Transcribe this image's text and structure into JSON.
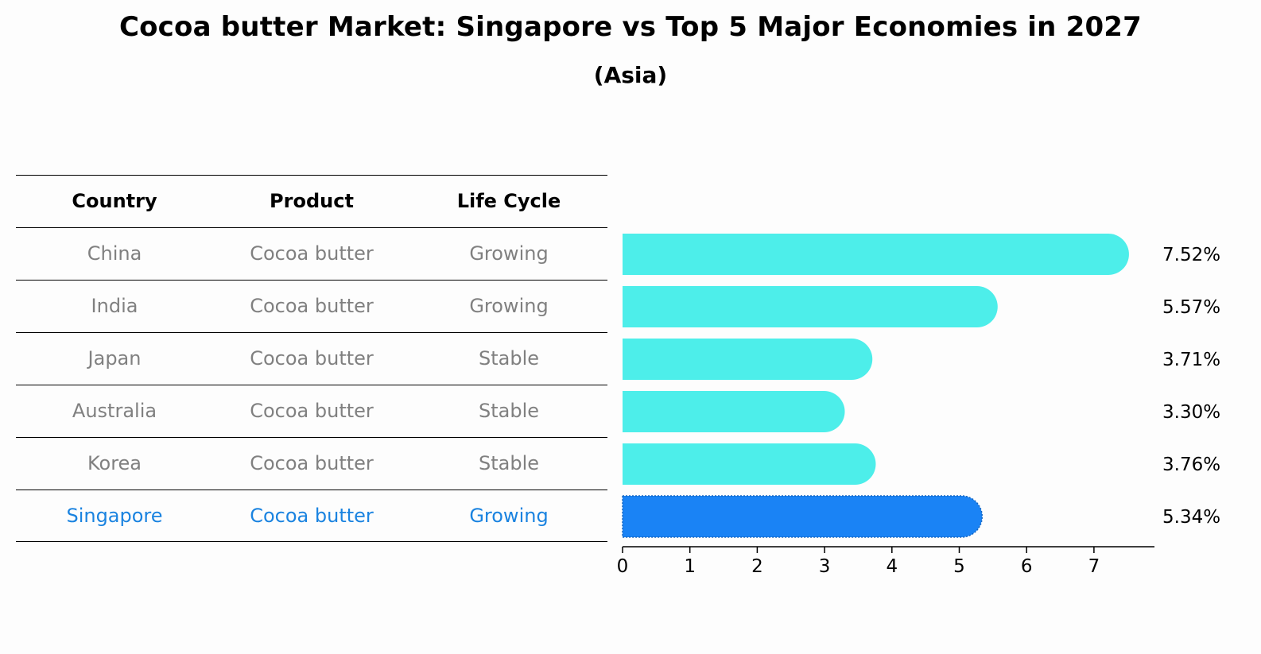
{
  "chart_data": {
    "type": "bar",
    "orientation": "horizontal",
    "title": "Cocoa butter Market: Singapore vs Top 5 Major Economies in 2027",
    "subtitle": "(Asia)",
    "table": {
      "headers": [
        "Country",
        "Product",
        "Life Cycle"
      ],
      "rows": [
        [
          "China",
          "Cocoa butter",
          "Growing"
        ],
        [
          "India",
          "Cocoa butter",
          "Growing"
        ],
        [
          "Japan",
          "Cocoa butter",
          "Stable"
        ],
        [
          "Australia",
          "Cocoa butter",
          "Stable"
        ],
        [
          "Korea",
          "Cocoa butter",
          "Stable"
        ],
        [
          "Singapore",
          "Cocoa butter",
          "Growing"
        ]
      ],
      "highlight_row": 5
    },
    "categories": [
      "China",
      "India",
      "Japan",
      "Australia",
      "Korea",
      "Singapore"
    ],
    "values": [
      7.52,
      5.57,
      3.71,
      3.3,
      3.76,
      5.34
    ],
    "value_labels": [
      "7.52%",
      "5.57%",
      "3.71%",
      "3.30%",
      "3.76%",
      "5.34%"
    ],
    "xlim": [
      0,
      7.9
    ],
    "xticks": [
      "0",
      "1",
      "2",
      "3",
      "4",
      "5",
      "6",
      "7"
    ],
    "grid": false,
    "colors": {
      "bar": "#4deeea",
      "highlight": "#1a83f5",
      "highlight_text": "#1a83e0",
      "muted_text": "#808080"
    }
  }
}
